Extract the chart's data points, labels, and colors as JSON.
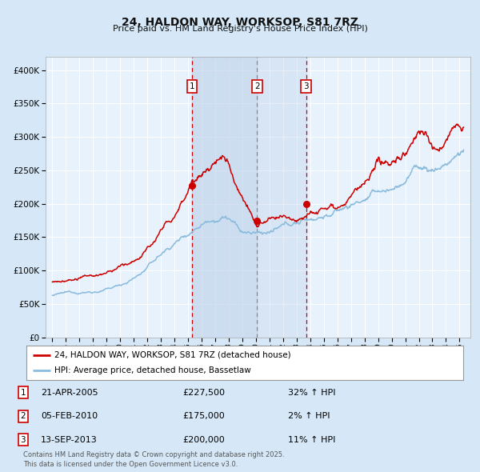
{
  "title": "24, HALDON WAY, WORKSOP, S81 7RZ",
  "subtitle": "Price paid vs. HM Land Registry's House Price Index (HPI)",
  "legend_entry1": "24, HALDON WAY, WORKSOP, S81 7RZ (detached house)",
  "legend_entry2": "HPI: Average price, detached house, Bassetlaw",
  "footer": "Contains HM Land Registry data © Crown copyright and database right 2025.\nThis data is licensed under the Open Government Licence v3.0.",
  "transactions": [
    {
      "num": 1,
      "date": "21-APR-2005",
      "price": 227500,
      "pct": "32%",
      "dir": "↑",
      "x_year": 2005.3
    },
    {
      "num": 2,
      "date": "05-FEB-2010",
      "price": 175000,
      "pct": "2%",
      "dir": "↑",
      "x_year": 2010.08
    },
    {
      "num": 3,
      "date": "13-SEP-2013",
      "price": 200000,
      "pct": "11%",
      "dir": "↑",
      "x_year": 2013.7
    }
  ],
  "bg_color": "#d6e8f7",
  "plot_bg": "#e8f2fc",
  "red_line_color": "#cc0000",
  "blue_line_color": "#88bbdd",
  "grid_color": "#ffffff",
  "vline_shade_color": "#bbcfe8",
  "marker_color": "#cc0000",
  "ylim": [
    0,
    420000
  ],
  "xlim_start": 1994.5,
  "xlim_end": 2025.8,
  "yticks": [
    0,
    50000,
    100000,
    150000,
    200000,
    250000,
    300000,
    350000,
    400000
  ]
}
